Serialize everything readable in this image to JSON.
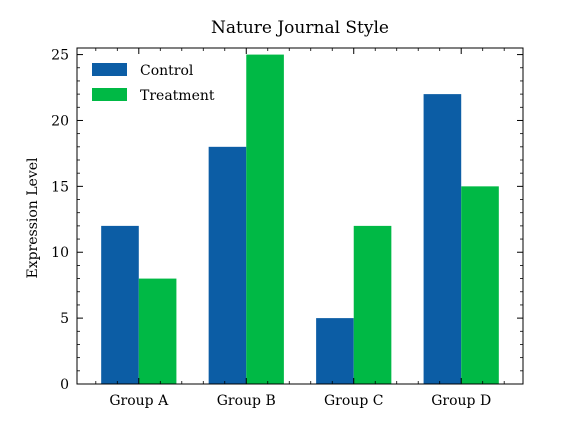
{
  "chart_data": {
    "type": "bar",
    "title": "Nature Journal Style",
    "xlabel": "",
    "ylabel": "Expression Level",
    "categories": [
      "Group A",
      "Group B",
      "Group C",
      "Group D"
    ],
    "series": [
      {
        "name": "Control",
        "values": [
          12,
          18,
          5,
          22
        ],
        "color": "#0C5DA5"
      },
      {
        "name": "Treatment",
        "values": [
          8,
          25,
          12,
          15
        ],
        "color": "#00B945"
      }
    ],
    "ylim": [
      0,
      25.5
    ],
    "yticks": [
      "0",
      "5",
      "10",
      "15",
      "20",
      "25"
    ],
    "ytick_values": [
      0,
      5,
      10,
      15,
      20,
      25
    ],
    "grid": false,
    "legend_position": "top-left"
  }
}
